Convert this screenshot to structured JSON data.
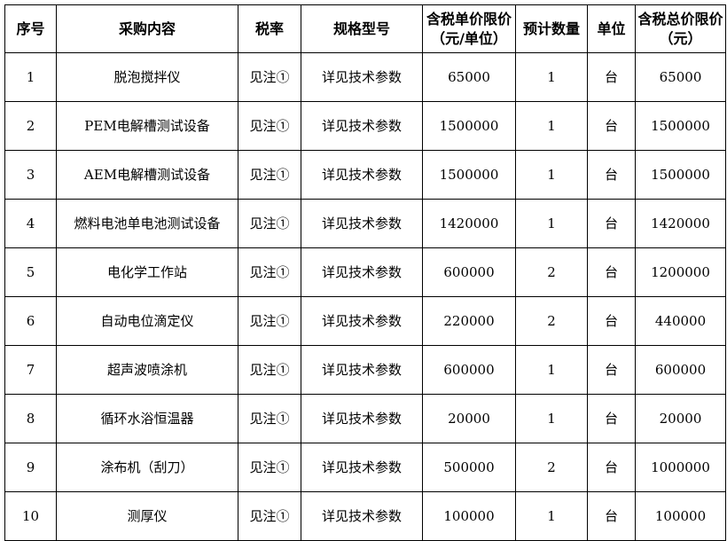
{
  "headers": [
    "序号",
    "采购内容",
    "税率",
    "规格型号",
    "含税单价限价（元/单位）",
    "预计数量",
    "单位",
    "含税总价限价（元）"
  ],
  "rows": [
    [
      "1",
      "脱泡搅拌仪",
      "见注①",
      "详见技术参数",
      "65000",
      "1",
      "台",
      "65000"
    ],
    [
      "2",
      "PEM电解槽测试设备",
      "见注①",
      "详见技术参数",
      "1500000",
      "1",
      "台",
      "1500000"
    ],
    [
      "3",
      "AEM电解槽测试设备",
      "见注①",
      "详见技术参数",
      "1500000",
      "1",
      "台",
      "1500000"
    ],
    [
      "4",
      "燃料电池单电池测试设备",
      "见注①",
      "详见技术参数",
      "1420000",
      "1",
      "台",
      "1420000"
    ],
    [
      "5",
      "电化学工作站",
      "见注①",
      "详见技术参数",
      "600000",
      "2",
      "台",
      "1200000"
    ],
    [
      "6",
      "自动电位滴定仪",
      "见注①",
      "详见技术参数",
      "220000",
      "2",
      "台",
      "440000"
    ],
    [
      "7",
      "超声波喷涂机",
      "见注①",
      "详见技术参数",
      "600000",
      "1",
      "台",
      "600000"
    ],
    [
      "8",
      "循环水浴恒温器",
      "见注①",
      "详见技术参数",
      "20000",
      "1",
      "台",
      "20000"
    ],
    [
      "9",
      "涂布机（刮刀）",
      "见注①",
      "详见技术参数",
      "500000",
      "2",
      "台",
      "1000000"
    ],
    [
      "10",
      "测厚仪",
      "见注①",
      "详见技术参数",
      "100000",
      "1",
      "台",
      "100000"
    ]
  ]
}
